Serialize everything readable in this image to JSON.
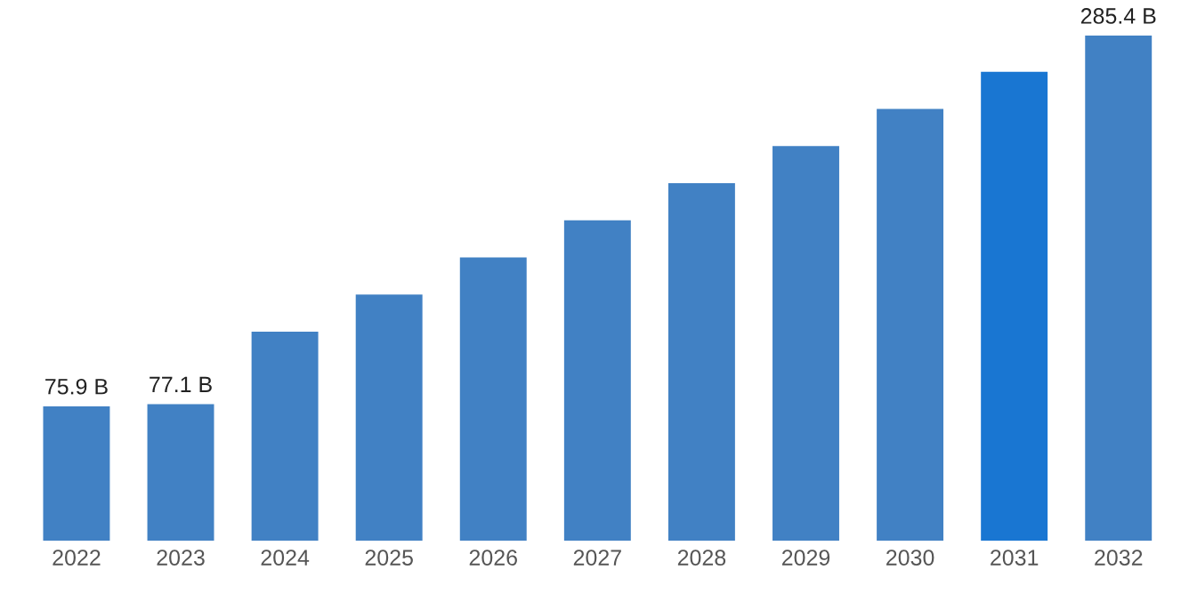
{
  "chart_data": {
    "type": "bar",
    "categories": [
      "2022",
      "2023",
      "2024",
      "2025",
      "2026",
      "2027",
      "2028",
      "2029",
      "2030",
      "2031",
      "2032"
    ],
    "values": [
      75.9,
      77.1,
      118,
      139,
      160,
      181,
      202,
      223,
      244,
      265,
      285.4
    ],
    "colors": [
      "#4181c4",
      "#4181c4",
      "#4181c4",
      "#4181c4",
      "#4181c4",
      "#4181c4",
      "#4181c4",
      "#4181c4",
      "#4181c4",
      "#1976d2",
      "#4181c4"
    ],
    "value_labels": [
      "75.9 B",
      "77.1 B",
      null,
      null,
      null,
      null,
      null,
      null,
      null,
      null,
      "285.4 B"
    ],
    "tick_labels": "x",
    "grid": false,
    "legend": false
  }
}
